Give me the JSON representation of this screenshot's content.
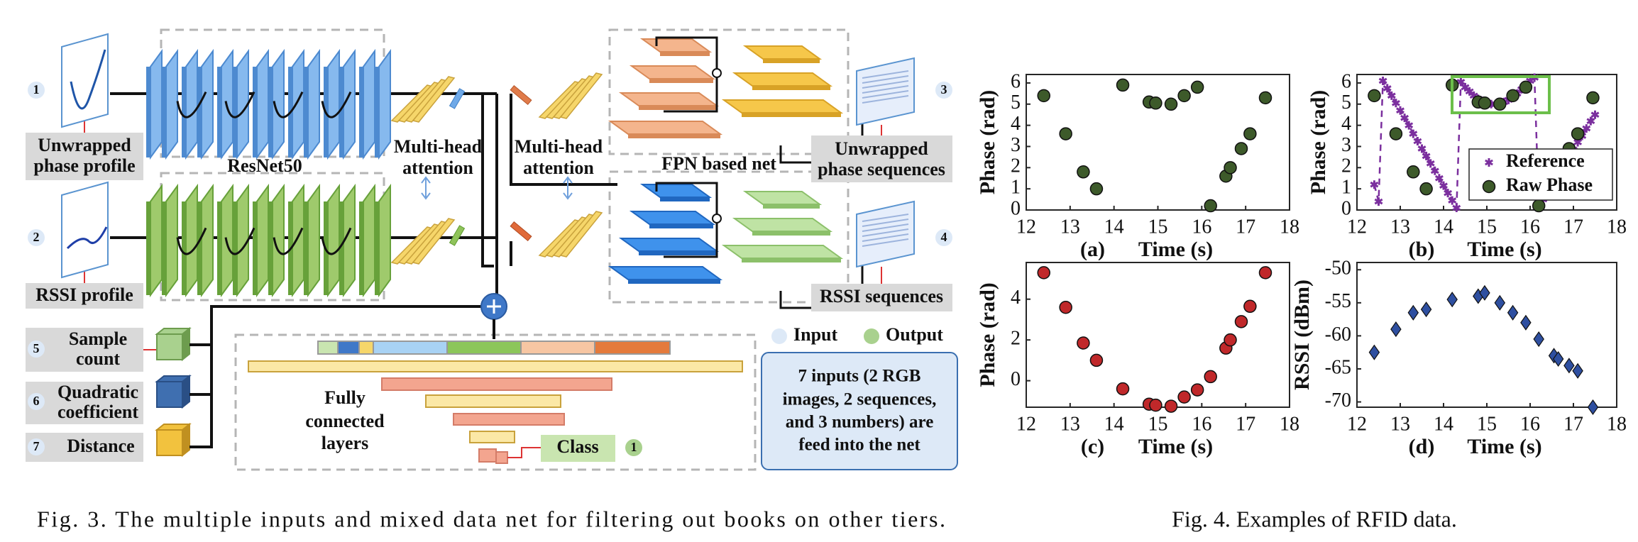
{
  "figure3": {
    "inputs": [
      {
        "number": "1",
        "label": [
          "Unwrapped",
          "phase profile"
        ]
      },
      {
        "number": "2",
        "label": [
          "RSSI profile"
        ]
      },
      {
        "number": "3",
        "label": [
          "Unwrapped",
          "phase sequences"
        ]
      },
      {
        "number": "4",
        "label": [
          "RSSI sequences"
        ]
      },
      {
        "number": "5",
        "label": [
          "Sample",
          "count"
        ]
      },
      {
        "number": "6",
        "label": [
          "Quadratic",
          "coefficient"
        ]
      },
      {
        "number": "7",
        "label": [
          "Distance"
        ]
      }
    ],
    "blocks": {
      "resnet": "ResNet50",
      "attention": [
        "Multi-head",
        "attention"
      ],
      "fpn": "FPN based net",
      "fc": [
        "Fully",
        "connected",
        "layers"
      ],
      "class": "Class",
      "class_number": "1"
    },
    "legend": [
      "Input",
      "Output"
    ],
    "note": [
      "7 inputs (2 RGB",
      "images, 2 sequences,",
      "and 3 numbers) are",
      "feed into the net"
    ],
    "caption": "Fig. 3.  The multiple inputs and mixed data net for filtering out books on other tiers."
  },
  "chart_data": [
    {
      "type": "scatter",
      "label": "(a)",
      "xlabel": "Time (s)",
      "ylabel": "Phase (rad)",
      "xlim": [
        12,
        18
      ],
      "xticks": [
        12,
        13,
        14,
        15,
        16,
        17,
        18
      ],
      "ylim": [
        0,
        6.4
      ],
      "yticks": [
        0,
        1,
        2,
        3,
        4,
        5,
        6
      ],
      "series": [
        {
          "color": "#3d5a2a",
          "marker": "circle",
          "x": [
            12.4,
            12.9,
            13.3,
            13.6,
            14.2,
            14.8,
            14.95,
            15.3,
            15.6,
            15.9,
            16.2,
            16.55,
            16.65,
            16.9,
            17.1,
            17.45
          ],
          "values": [
            5.4,
            3.6,
            1.8,
            1.0,
            5.9,
            5.1,
            5.05,
            5.0,
            5.4,
            5.8,
            0.2,
            1.6,
            2.0,
            2.9,
            3.6,
            5.3
          ]
        }
      ]
    },
    {
      "type": "scatter",
      "label": "(b)",
      "xlabel": "Time (s)",
      "ylabel": "Phase (rad)",
      "xlim": [
        12,
        18
      ],
      "xticks": [
        12,
        13,
        14,
        15,
        16,
        17,
        18
      ],
      "ylim": [
        0,
        6.4
      ],
      "yticks": [
        0,
        1,
        2,
        3,
        4,
        5,
        6
      ],
      "legend": "lower right",
      "series": [
        {
          "name": "Reference",
          "color": "#7b2f9e",
          "marker": "asterisk",
          "line": "dashed",
          "x": [
            12.4,
            12.5,
            12.6,
            12.7,
            12.8,
            12.9,
            13.0,
            13.1,
            13.2,
            13.3,
            13.4,
            13.5,
            13.6,
            13.7,
            13.8,
            13.9,
            14.0,
            14.1,
            14.2,
            14.3,
            14.4,
            14.5,
            14.6,
            14.7,
            14.8,
            14.9,
            15.0,
            15.1,
            15.2,
            15.3,
            15.4,
            15.5,
            15.6,
            15.7,
            15.8,
            15.9,
            16.0,
            16.1,
            16.2,
            16.3,
            16.4,
            16.5,
            16.6,
            16.7,
            16.8,
            16.9,
            17.0,
            17.1,
            17.2,
            17.3,
            17.4,
            17.5
          ],
          "values": [
            1.2,
            0.4,
            6.1,
            5.75,
            5.4,
            5.05,
            4.7,
            4.35,
            4.0,
            3.6,
            3.25,
            2.9,
            2.55,
            2.2,
            1.85,
            1.5,
            1.15,
            0.8,
            0.45,
            0.1,
            6.05,
            5.8,
            5.6,
            5.4,
            5.25,
            5.15,
            5.05,
            5.0,
            5.0,
            5.05,
            5.1,
            5.2,
            5.35,
            5.5,
            5.7,
            5.9,
            6.1,
            6.25,
            0.2,
            0.5,
            0.85,
            1.2,
            1.5,
            1.85,
            2.2,
            2.5,
            2.85,
            3.2,
            3.5,
            3.85,
            4.2,
            4.5
          ]
        },
        {
          "name": "Raw Phase",
          "color": "#3d5a2a",
          "marker": "circle",
          "x": [
            12.4,
            12.9,
            13.3,
            13.6,
            14.2,
            14.8,
            14.95,
            15.3,
            15.6,
            15.9,
            16.2,
            16.55,
            16.65,
            16.9,
            17.1,
            17.45
          ],
          "values": [
            5.4,
            3.6,
            1.8,
            1.0,
            5.9,
            5.1,
            5.05,
            5.0,
            5.4,
            5.8,
            0.2,
            1.6,
            2.0,
            2.9,
            3.6,
            5.3
          ]
        }
      ]
    },
    {
      "type": "scatter",
      "label": "(c)",
      "xlabel": "Time (s)",
      "ylabel": "Phase (rad)",
      "xlim": [
        12,
        18
      ],
      "xticks": [
        12,
        13,
        14,
        15,
        16,
        17,
        18
      ],
      "ylim": [
        -1.3,
        5.8
      ],
      "yticks": [
        0,
        2,
        4
      ],
      "series": [
        {
          "color": "#c0282a",
          "marker": "circle",
          "x": [
            12.4,
            12.9,
            13.3,
            13.6,
            14.2,
            14.8,
            14.95,
            15.3,
            15.6,
            15.9,
            16.2,
            16.55,
            16.65,
            16.9,
            17.1,
            17.45
          ],
          "values": [
            5.3,
            3.6,
            1.85,
            1.0,
            -0.4,
            -1.15,
            -1.2,
            -1.25,
            -0.8,
            -0.45,
            0.2,
            1.6,
            2.0,
            2.9,
            3.65,
            5.3
          ]
        }
      ]
    },
    {
      "type": "scatter",
      "label": "(d)",
      "xlabel": "Time (s)",
      "ylabel": "RSSI (dBm)",
      "xlim": [
        12,
        18
      ],
      "xticks": [
        12,
        13,
        14,
        15,
        16,
        17,
        18
      ],
      "ylim": [
        -70.8,
        -48.9
      ],
      "yticks": [
        -50,
        -55,
        -60,
        -65,
        -70
      ],
      "series": [
        {
          "color": "#2e4fa0",
          "marker": "diamond",
          "x": [
            12.4,
            12.9,
            13.3,
            13.6,
            14.2,
            14.8,
            14.95,
            15.3,
            15.6,
            15.9,
            16.2,
            16.55,
            16.65,
            16.9,
            17.1,
            17.45
          ],
          "values": [
            -62.5,
            -59,
            -56.5,
            -56,
            -54.5,
            -54,
            -53.5,
            -55,
            -56.5,
            -58,
            -60.5,
            -63,
            -63.5,
            -64.5,
            -65.3,
            -70.8
          ]
        }
      ]
    }
  ],
  "figure4_caption": "Fig. 4.  Examples of RFID data."
}
